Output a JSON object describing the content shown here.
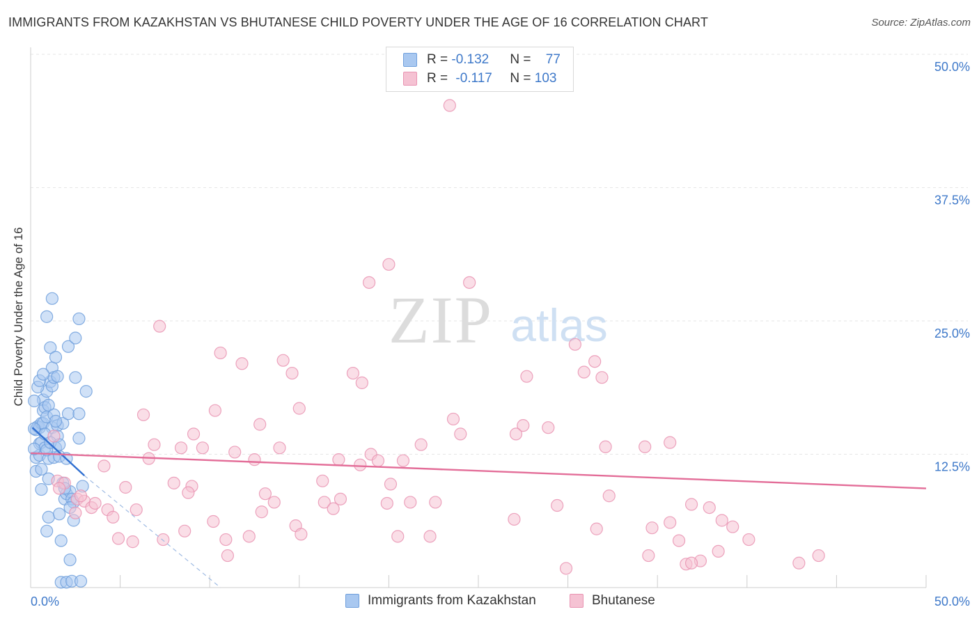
{
  "title": "IMMIGRANTS FROM KAZAKHSTAN VS BHUTANESE CHILD POVERTY UNDER THE AGE OF 16 CORRELATION CHART",
  "source": "Source: ZipAtlas.com",
  "watermark": {
    "zip": "ZIP",
    "atlas": "atlas"
  },
  "colors": {
    "blue_fill": "#a9c8f0",
    "blue_stroke": "#6f9fdc",
    "blue_line": "#2f6fd1",
    "pink_fill": "#f5c2d3",
    "pink_stroke": "#e993b2",
    "pink_line": "#e36d98",
    "tick_label": "#3d78c9",
    "grid": "#e6e6e6"
  },
  "legend": {
    "rows": [
      {
        "series": "blue",
        "r_label": "R = ",
        "r_value": "-0.132",
        "n_label": "N = ",
        "n_value": "77"
      },
      {
        "series": "pink",
        "r_label": "R = ",
        "r_value": "-0.117",
        "n_label": "N = ",
        "n_value": "103"
      }
    ]
  },
  "chart_data": {
    "type": "scatter",
    "title": "IMMIGRANTS FROM KAZAKHSTAN VS BHUTANESE CHILD POVERTY UNDER THE AGE OF 16 CORRELATION CHART",
    "xlabel": "",
    "ylabel": "Child Poverty Under the Age of 16",
    "xlim": [
      0,
      50
    ],
    "ylim": [
      0,
      50
    ],
    "x_tick_labels": {
      "min": "0.0%",
      "max": "50.0%"
    },
    "y_ticks": [
      12.5,
      25,
      37.5,
      50
    ],
    "y_tick_labels": [
      "12.5%",
      "25.0%",
      "37.5%",
      "50.0%"
    ],
    "grid": true,
    "series": [
      {
        "name": "Immigrants from Kazakhstan",
        "color": "blue",
        "trend": {
          "x": [
            0.1,
            3.0
          ],
          "y": [
            15.0,
            10.5
          ]
        },
        "trend_extension": {
          "x": [
            3.0,
            10.6
          ],
          "y": [
            10.5,
            0.0
          ]
        },
        "points": [
          [
            0.3,
            12.2
          ],
          [
            0.3,
            14.8
          ],
          [
            0.4,
            15.1
          ],
          [
            0.5,
            15.0
          ],
          [
            0.5,
            13.5
          ],
          [
            0.5,
            12.4
          ],
          [
            0.6,
            13.6
          ],
          [
            0.6,
            15.4
          ],
          [
            0.6,
            9.2
          ],
          [
            0.7,
            17.6
          ],
          [
            0.7,
            16.6
          ],
          [
            0.7,
            15.4
          ],
          [
            0.8,
            16.9
          ],
          [
            0.8,
            13.1
          ],
          [
            0.9,
            25.4
          ],
          [
            0.9,
            18.4
          ],
          [
            0.9,
            5.3
          ],
          [
            0.9,
            16.0
          ],
          [
            1.0,
            12.1
          ],
          [
            1.0,
            10.2
          ],
          [
            1.0,
            6.6
          ],
          [
            1.1,
            19.3
          ],
          [
            1.1,
            22.5
          ],
          [
            1.2,
            20.6
          ],
          [
            1.2,
            18.9
          ],
          [
            1.2,
            15.0
          ],
          [
            1.2,
            27.1
          ],
          [
            1.3,
            19.7
          ],
          [
            1.3,
            12.2
          ],
          [
            1.4,
            21.6
          ],
          [
            1.4,
            13.1
          ],
          [
            1.5,
            19.8
          ],
          [
            1.5,
            15.2
          ],
          [
            1.5,
            14.2
          ],
          [
            1.6,
            12.3
          ],
          [
            1.6,
            6.9
          ],
          [
            1.7,
            0.5
          ],
          [
            1.7,
            4.4
          ],
          [
            1.8,
            15.4
          ],
          [
            1.8,
            9.8
          ],
          [
            1.9,
            8.3
          ],
          [
            2.0,
            8.8
          ],
          [
            2.0,
            12.1
          ],
          [
            2.0,
            0.5
          ],
          [
            2.1,
            22.6
          ],
          [
            2.1,
            16.3
          ],
          [
            2.2,
            2.6
          ],
          [
            2.2,
            9.0
          ],
          [
            2.3,
            8.3
          ],
          [
            2.3,
            0.6
          ],
          [
            2.4,
            8.0
          ],
          [
            2.4,
            6.3
          ],
          [
            2.5,
            23.4
          ],
          [
            2.5,
            19.7
          ],
          [
            2.7,
            14.0
          ],
          [
            2.7,
            16.3
          ],
          [
            2.8,
            0.6
          ],
          [
            3.1,
            18.4
          ],
          [
            0.2,
            17.5
          ],
          [
            0.2,
            14.9
          ],
          [
            0.2,
            13.0
          ],
          [
            0.3,
            10.9
          ],
          [
            0.4,
            18.8
          ],
          [
            0.5,
            19.4
          ],
          [
            0.6,
            11.1
          ],
          [
            0.7,
            20.0
          ],
          [
            0.8,
            14.4
          ],
          [
            0.9,
            12.9
          ],
          [
            1.0,
            17.1
          ],
          [
            1.1,
            13.6
          ],
          [
            1.3,
            16.2
          ],
          [
            1.4,
            15.6
          ],
          [
            1.6,
            13.4
          ],
          [
            1.9,
            9.3
          ],
          [
            2.2,
            7.5
          ],
          [
            2.9,
            9.5
          ],
          [
            2.7,
            25.2
          ]
        ]
      },
      {
        "name": "Bhutanese",
        "color": "pink",
        "trend": {
          "x": [
            0,
            50
          ],
          "y": [
            12.6,
            9.3
          ]
        },
        "points": [
          [
            23.4,
            45.2
          ],
          [
            20.0,
            30.3
          ],
          [
            18.9,
            28.6
          ],
          [
            24.5,
            28.6
          ],
          [
            7.2,
            24.5
          ],
          [
            30.4,
            22.8
          ],
          [
            10.6,
            22.0
          ],
          [
            11.8,
            21.0
          ],
          [
            14.1,
            21.3
          ],
          [
            31.5,
            21.2
          ],
          [
            14.6,
            20.1
          ],
          [
            18.0,
            20.1
          ],
          [
            27.7,
            19.8
          ],
          [
            30.9,
            20.2
          ],
          [
            31.9,
            19.7
          ],
          [
            18.5,
            19.2
          ],
          [
            15.0,
            16.8
          ],
          [
            10.3,
            16.6
          ],
          [
            6.3,
            16.2
          ],
          [
            23.6,
            15.8
          ],
          [
            27.5,
            15.2
          ],
          [
            28.9,
            15.0
          ],
          [
            12.8,
            15.3
          ],
          [
            9.1,
            14.4
          ],
          [
            24.0,
            14.4
          ],
          [
            27.1,
            14.4
          ],
          [
            35.7,
            13.6
          ],
          [
            6.9,
            13.4
          ],
          [
            8.4,
            13.1
          ],
          [
            9.6,
            13.1
          ],
          [
            13.9,
            13.1
          ],
          [
            21.8,
            13.4
          ],
          [
            32.1,
            13.2
          ],
          [
            34.3,
            13.2
          ],
          [
            11.4,
            12.7
          ],
          [
            19.0,
            12.5
          ],
          [
            6.6,
            12.1
          ],
          [
            12.5,
            12.0
          ],
          [
            17.2,
            12.0
          ],
          [
            19.4,
            11.9
          ],
          [
            20.8,
            11.9
          ],
          [
            4.1,
            11.4
          ],
          [
            18.4,
            11.5
          ],
          [
            16.3,
            10.0
          ],
          [
            8.0,
            9.8
          ],
          [
            9.0,
            9.5
          ],
          [
            5.3,
            9.4
          ],
          [
            20.1,
            9.7
          ],
          [
            1.5,
            10.0
          ],
          [
            1.9,
            9.8
          ],
          [
            1.6,
            9.3
          ],
          [
            8.8,
            8.9
          ],
          [
            13.1,
            8.8
          ],
          [
            17.3,
            8.3
          ],
          [
            32.3,
            8.6
          ],
          [
            2.6,
            8.3
          ],
          [
            3.0,
            8.1
          ],
          [
            13.6,
            8.0
          ],
          [
            16.4,
            8.0
          ],
          [
            19.9,
            7.9
          ],
          [
            21.2,
            8.0
          ],
          [
            22.6,
            8.0
          ],
          [
            29.4,
            7.7
          ],
          [
            3.4,
            7.5
          ],
          [
            5.9,
            7.3
          ],
          [
            12.9,
            7.1
          ],
          [
            16.9,
            7.4
          ],
          [
            2.5,
            7.0
          ],
          [
            4.3,
            7.3
          ],
          [
            4.6,
            6.6
          ],
          [
            10.2,
            6.2
          ],
          [
            27.0,
            6.4
          ],
          [
            36.9,
            7.8
          ],
          [
            37.9,
            7.5
          ],
          [
            38.6,
            6.3
          ],
          [
            39.2,
            5.7
          ],
          [
            31.6,
            5.5
          ],
          [
            34.7,
            5.6
          ],
          [
            35.7,
            6.1
          ],
          [
            14.8,
            5.8
          ],
          [
            15.1,
            5.0
          ],
          [
            8.6,
            5.3
          ],
          [
            12.2,
            4.8
          ],
          [
            4.9,
            4.6
          ],
          [
            7.4,
            4.5
          ],
          [
            10.9,
            4.5
          ],
          [
            20.5,
            4.8
          ],
          [
            22.3,
            4.8
          ],
          [
            5.7,
            4.3
          ],
          [
            36.2,
            4.4
          ],
          [
            40.1,
            4.5
          ],
          [
            2.8,
            8.6
          ],
          [
            11.0,
            3.0
          ],
          [
            34.5,
            3.0
          ],
          [
            38.4,
            3.4
          ],
          [
            44.0,
            3.0
          ],
          [
            37.4,
            2.5
          ],
          [
            36.6,
            2.2
          ],
          [
            36.9,
            2.3
          ],
          [
            42.9,
            2.3
          ],
          [
            29.9,
            1.8
          ],
          [
            3.6,
            7.9
          ],
          [
            1.3,
            14.2
          ]
        ]
      }
    ]
  },
  "bottom_legend": [
    {
      "series": "blue",
      "label": "Immigrants from Kazakhstan"
    },
    {
      "series": "pink",
      "label": "Bhutanese"
    }
  ]
}
